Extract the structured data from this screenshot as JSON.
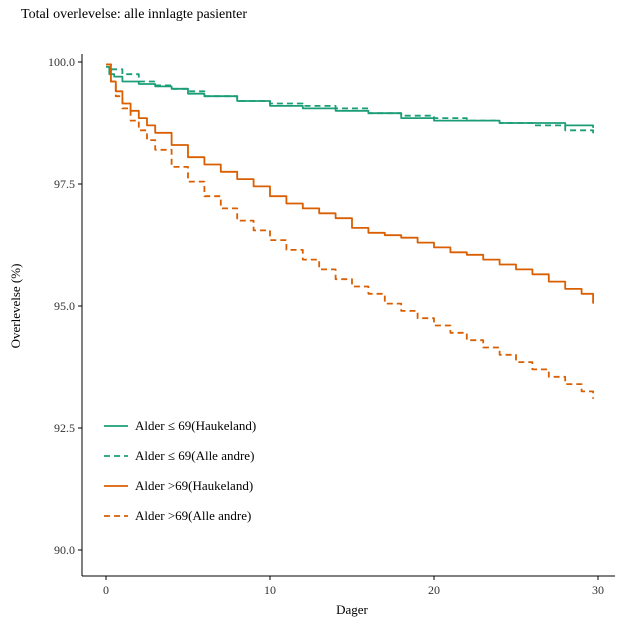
{
  "chart_data": {
    "type": "line",
    "title": "Total overlevelse: alle innlagte pasienter",
    "xlabel": "Dager",
    "ylabel": "Overlevelse (%)",
    "xlim": [
      0,
      30
    ],
    "ylim": [
      90,
      100
    ],
    "xticks": [
      0,
      10,
      20,
      30
    ],
    "xtick_labels": [
      "0",
      "10",
      "20",
      "30"
    ],
    "yticks": [
      90,
      92.5,
      95,
      97.5,
      100
    ],
    "ytick_labels": [
      "90.0",
      "92.5",
      "95.0",
      "97.5",
      "100.0"
    ],
    "grid": false,
    "legend_position": "bottom-left",
    "series": [
      {
        "name": "Alder ≤ 69(Haukeland)",
        "color": "#1b9e77",
        "dash": "solid",
        "x": [
          0,
          0.2,
          0.5,
          1,
          2,
          3,
          4,
          5,
          6,
          8,
          10,
          12,
          14,
          16,
          18,
          20,
          22,
          24,
          26,
          28,
          29.7
        ],
        "y": [
          99.9,
          99.75,
          99.7,
          99.6,
          99.55,
          99.5,
          99.45,
          99.35,
          99.3,
          99.2,
          99.1,
          99.05,
          99.0,
          98.95,
          98.85,
          98.8,
          98.8,
          98.75,
          98.75,
          98.7,
          98.65
        ]
      },
      {
        "name": "Alder ≤ 69(Alle andre)",
        "color": "#1b9e77",
        "dash": "dashed",
        "x": [
          0,
          0.3,
          1,
          2,
          3,
          4,
          5,
          6,
          8,
          10,
          12,
          14,
          16,
          18,
          20,
          22,
          24,
          26,
          28,
          29.7
        ],
        "y": [
          99.95,
          99.85,
          99.75,
          99.6,
          99.52,
          99.45,
          99.4,
          99.3,
          99.2,
          99.15,
          99.1,
          99.05,
          98.95,
          98.9,
          98.85,
          98.8,
          98.75,
          98.7,
          98.6,
          98.5
        ]
      },
      {
        "name": "Alder >69(Haukeland)",
        "color": "#d95f02",
        "dash": "solid",
        "x": [
          0,
          0.3,
          0.6,
          1,
          1.5,
          2,
          2.5,
          3,
          4,
          5,
          6,
          7,
          8,
          9,
          10,
          11,
          12,
          13,
          14,
          15,
          16,
          17,
          18,
          19,
          20,
          21,
          22,
          23,
          24,
          25,
          26,
          27,
          28,
          29,
          29.7
        ],
        "y": [
          99.95,
          99.6,
          99.4,
          99.15,
          99.0,
          98.85,
          98.7,
          98.55,
          98.3,
          98.05,
          97.9,
          97.75,
          97.6,
          97.45,
          97.25,
          97.1,
          97.0,
          96.9,
          96.8,
          96.6,
          96.5,
          96.45,
          96.4,
          96.3,
          96.2,
          96.1,
          96.05,
          95.95,
          95.85,
          95.75,
          95.65,
          95.5,
          95.35,
          95.25,
          95.05
        ]
      },
      {
        "name": "Alder >69(Alle andre)",
        "color": "#d95f02",
        "dash": "dashed",
        "x": [
          0,
          0.3,
          0.6,
          1,
          1.5,
          2,
          2.5,
          3,
          4,
          5,
          6,
          7,
          8,
          9,
          10,
          11,
          12,
          13,
          14,
          15,
          16,
          17,
          18,
          19,
          20,
          21,
          22,
          23,
          24,
          25,
          26,
          27,
          28,
          29,
          29.7
        ],
        "y": [
          99.95,
          99.6,
          99.3,
          99.05,
          98.8,
          98.6,
          98.4,
          98.2,
          97.85,
          97.55,
          97.25,
          97.0,
          96.75,
          96.55,
          96.35,
          96.15,
          95.95,
          95.75,
          95.55,
          95.4,
          95.25,
          95.05,
          94.9,
          94.75,
          94.6,
          94.45,
          94.3,
          94.15,
          94.0,
          93.85,
          93.7,
          93.55,
          93.4,
          93.25,
          93.1
        ]
      }
    ]
  }
}
